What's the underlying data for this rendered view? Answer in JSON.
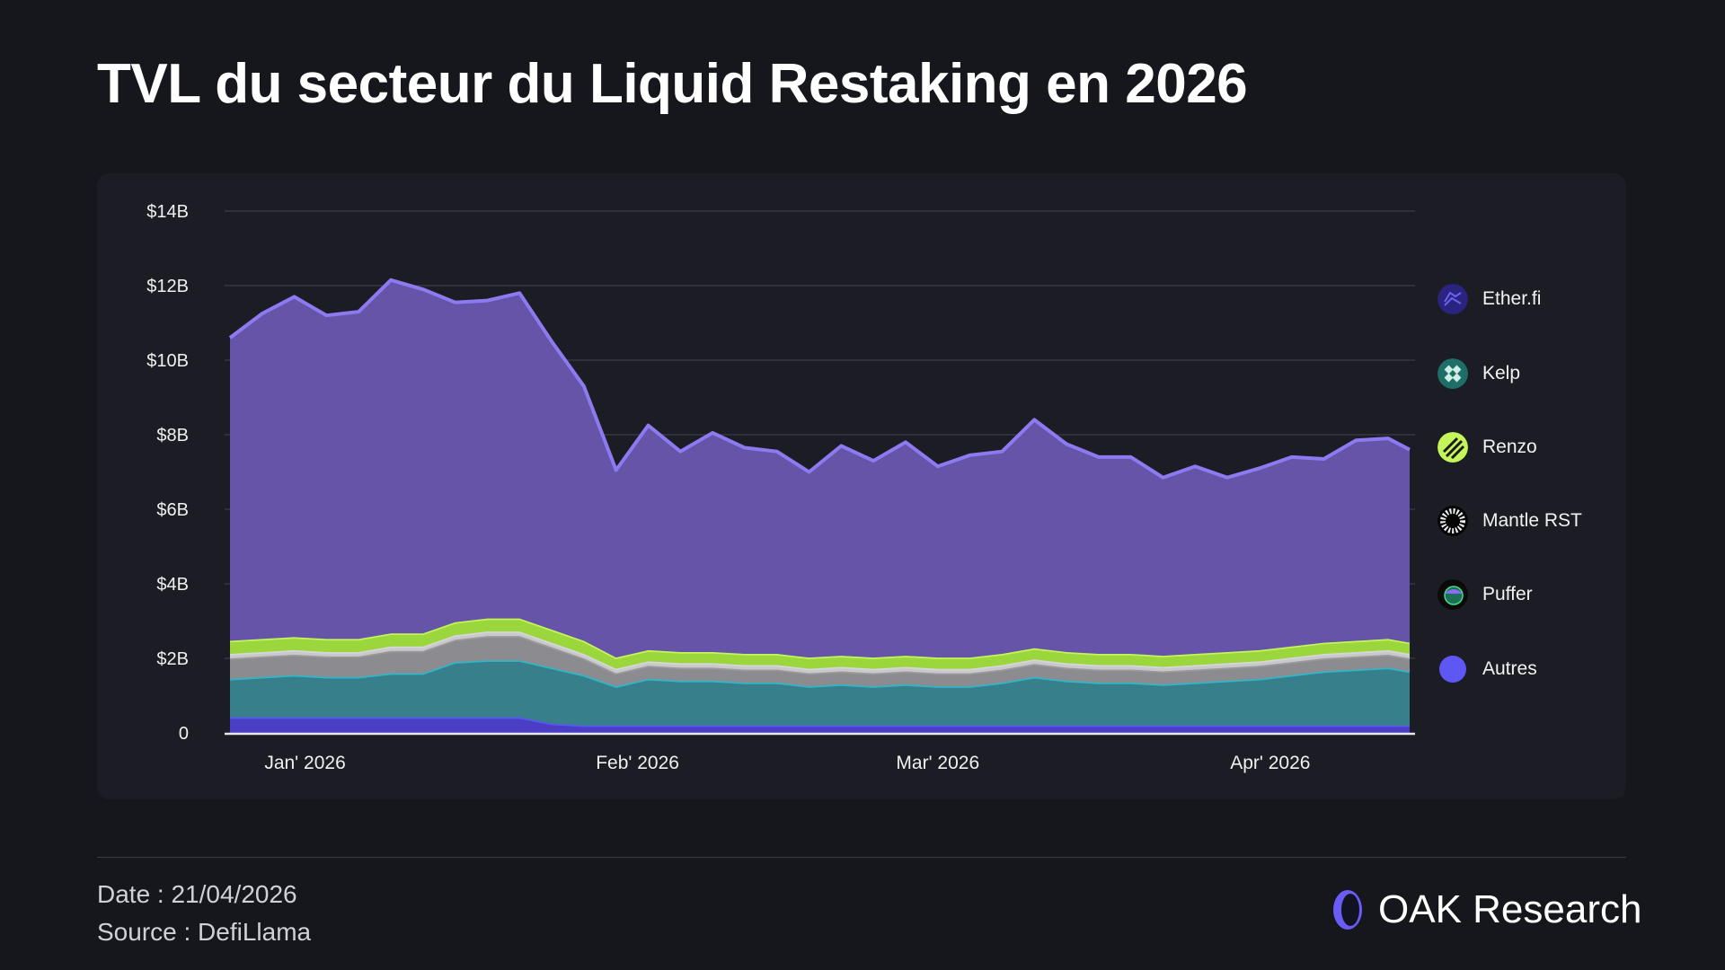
{
  "title": "TVL du secteur du Liquid Restaking en 2026",
  "footer": {
    "date": "Date : 21/04/2026",
    "source": "Source : DefiLlama",
    "logo": "OAK Research"
  },
  "chart_data": {
    "type": "area",
    "stacked": true,
    "title": "TVL du secteur du Liquid Restaking en 2026",
    "xlabel": "",
    "ylabel": "",
    "ylim": [
      0,
      14
    ],
    "y_ticks": [
      {
        "value": 0,
        "label": "0"
      },
      {
        "value": 2,
        "label": "$2B"
      },
      {
        "value": 4,
        "label": "$4B"
      },
      {
        "value": 6,
        "label": "$6B"
      },
      {
        "value": 8,
        "label": "$8B"
      },
      {
        "value": 10,
        "label": "$10B"
      },
      {
        "value": 12,
        "label": "$12B"
      },
      {
        "value": 14,
        "label": "$14B"
      }
    ],
    "x_ticks": [
      {
        "date": "2026-01-01",
        "label": "Jan' 2026"
      },
      {
        "date": "2026-02-01",
        "label": "Feb' 2026"
      },
      {
        "date": "2026-03-01",
        "label": "Mar' 2026"
      },
      {
        "date": "2026-04-01",
        "label": "Apr' 2026"
      }
    ],
    "grid": true,
    "legend_position": "right",
    "x": [
      "2025-12-25",
      "2025-12-28",
      "2025-12-31",
      "2026-01-03",
      "2026-01-06",
      "2026-01-09",
      "2026-01-12",
      "2026-01-15",
      "2026-01-18",
      "2026-01-21",
      "2026-01-24",
      "2026-01-27",
      "2026-01-30",
      "2026-02-02",
      "2026-02-05",
      "2026-02-08",
      "2026-02-11",
      "2026-02-14",
      "2026-02-17",
      "2026-02-20",
      "2026-02-23",
      "2026-02-26",
      "2026-03-01",
      "2026-03-04",
      "2026-03-07",
      "2026-03-10",
      "2026-03-13",
      "2026-03-16",
      "2026-03-19",
      "2026-03-22",
      "2026-03-25",
      "2026-03-28",
      "2026-03-31",
      "2026-04-03",
      "2026-04-06",
      "2026-04-09",
      "2026-04-12",
      "2026-04-14"
    ],
    "series": [
      {
        "name": "Autres",
        "fill": "#4a3fc4",
        "line": "#5b55f5",
        "icon": "autres-dot",
        "values": [
          0.42,
          0.42,
          0.42,
          0.42,
          0.42,
          0.42,
          0.42,
          0.42,
          0.42,
          0.42,
          0.25,
          0.2,
          0.2,
          0.2,
          0.2,
          0.2,
          0.2,
          0.2,
          0.2,
          0.2,
          0.2,
          0.2,
          0.2,
          0.2,
          0.2,
          0.2,
          0.2,
          0.2,
          0.2,
          0.2,
          0.2,
          0.2,
          0.2,
          0.2,
          0.2,
          0.2,
          0.2,
          0.2
        ]
      },
      {
        "name": "Kelp",
        "fill": "#367f8b",
        "line": "#2fb6c8",
        "icon": "kelp-logo",
        "values": [
          1.03,
          1.08,
          1.13,
          1.08,
          1.08,
          1.18,
          1.18,
          1.48,
          1.53,
          1.53,
          1.5,
          1.35,
          1.05,
          1.25,
          1.2,
          1.2,
          1.15,
          1.15,
          1.05,
          1.1,
          1.05,
          1.1,
          1.05,
          1.05,
          1.15,
          1.3,
          1.2,
          1.15,
          1.15,
          1.1,
          1.15,
          1.2,
          1.25,
          1.35,
          1.45,
          1.5,
          1.55,
          1.45
        ]
      },
      {
        "name": "Mantle RST",
        "fill": "#8c8c90",
        "line": "#9a9a9e",
        "icon": "mantle-logo",
        "values": [
          0.55,
          0.55,
          0.55,
          0.55,
          0.55,
          0.6,
          0.6,
          0.6,
          0.65,
          0.65,
          0.55,
          0.45,
          0.35,
          0.35,
          0.35,
          0.35,
          0.35,
          0.35,
          0.35,
          0.35,
          0.35,
          0.35,
          0.35,
          0.35,
          0.35,
          0.35,
          0.35,
          0.35,
          0.35,
          0.35,
          0.35,
          0.35,
          0.35,
          0.35,
          0.35,
          0.35,
          0.35,
          0.35
        ]
      },
      {
        "name": "Puffer",
        "fill": "#c9c9cc",
        "line": "#d6d6d8",
        "icon": "puffer-logo",
        "values": [
          0.12,
          0.12,
          0.12,
          0.12,
          0.12,
          0.12,
          0.12,
          0.12,
          0.12,
          0.12,
          0.12,
          0.12,
          0.12,
          0.12,
          0.12,
          0.12,
          0.12,
          0.12,
          0.12,
          0.12,
          0.12,
          0.12,
          0.12,
          0.12,
          0.12,
          0.12,
          0.12,
          0.12,
          0.12,
          0.12,
          0.12,
          0.12,
          0.12,
          0.12,
          0.12,
          0.12,
          0.12,
          0.12
        ]
      },
      {
        "name": "Renzo",
        "fill": "#9ad63c",
        "line": "#c4f55a",
        "icon": "renzo-logo",
        "values": [
          0.35,
          0.35,
          0.35,
          0.35,
          0.35,
          0.35,
          0.35,
          0.35,
          0.35,
          0.35,
          0.35,
          0.35,
          0.3,
          0.3,
          0.3,
          0.3,
          0.3,
          0.3,
          0.3,
          0.3,
          0.3,
          0.3,
          0.3,
          0.3,
          0.3,
          0.3,
          0.3,
          0.3,
          0.3,
          0.3,
          0.3,
          0.3,
          0.3,
          0.3,
          0.3,
          0.3,
          0.3,
          0.3
        ]
      },
      {
        "name": "Ether.fi",
        "fill": "#6654a8",
        "line": "#8d7af0",
        "icon": "etherfi-logo",
        "values": [
          8.13,
          8.73,
          9.13,
          8.68,
          8.78,
          9.48,
          9.23,
          8.58,
          8.53,
          8.73,
          7.73,
          6.83,
          5.03,
          6.03,
          5.38,
          5.88,
          5.53,
          5.43,
          4.98,
          5.63,
          5.28,
          5.73,
          5.13,
          5.43,
          5.43,
          6.13,
          5.58,
          5.28,
          5.28,
          4.78,
          5.03,
          4.68,
          4.88,
          5.08,
          4.93,
          5.38,
          5.38,
          5.18
        ]
      }
    ],
    "legend": [
      "Ether.fi",
      "Kelp",
      "Renzo",
      "Mantle RST",
      "Puffer",
      "Autres"
    ]
  }
}
